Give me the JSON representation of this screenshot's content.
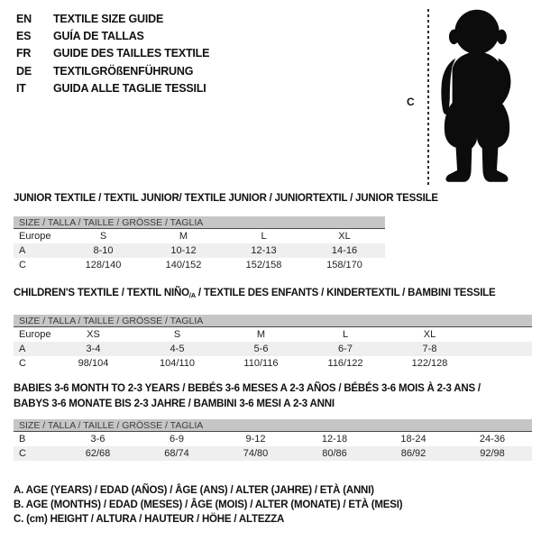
{
  "colors": {
    "size_bar_bg": "#c6c6c6",
    "size_bar_border": "#4a4a4a",
    "alt_row_bg": "#efefef",
    "text": "#111111",
    "silhouette": "#0c0c0c"
  },
  "languages": [
    {
      "code": "EN",
      "label": "TEXTILE SIZE GUIDE"
    },
    {
      "code": "ES",
      "label": "GUÍA DE TALLAS"
    },
    {
      "code": "FR",
      "label": "GUIDE DES TAILLES TEXTILE"
    },
    {
      "code": "DE",
      "label": "TEXTILGRÖßENFÜHRUNG"
    },
    {
      "code": "IT",
      "label": "GUIDA ALLE TAGLIE TESSILI"
    }
  ],
  "figure": {
    "height_label": "C"
  },
  "tables": [
    {
      "title": "JUNIOR TEXTILE / TEXTIL JUNIOR/ TEXTILE JUNIOR / JUNIORTEXTIL / JUNIOR TESSILE",
      "size_header": "SIZE / TALLA / TAILLE / GRÖSSE / TAGLIA",
      "rows": [
        {
          "label": "Europe",
          "values": [
            "S",
            "M",
            "L",
            "XL"
          ]
        },
        {
          "label": "A",
          "values": [
            "8-10",
            "10-12",
            "12-13",
            "14-16"
          ]
        },
        {
          "label": "C",
          "values": [
            "128/140",
            "140/152",
            "152/158",
            "158/170"
          ]
        }
      ]
    },
    {
      "title_pre": "CHILDREN'S TEXTILE / TEXTIL NIÑO",
      "title_sub": "/A",
      "title_post": " / TEXTILE DES ENFANTS / KINDERTEXTIL / BAMBINI TESSILE",
      "size_header": "SIZE / TALLA / TAILLE / GRÖSSE / TAGLIA",
      "rows": [
        {
          "label": "Europe",
          "values": [
            "XS",
            "S",
            "M",
            "L",
            "XL"
          ]
        },
        {
          "label": "A",
          "values": [
            "3-4",
            "4-5",
            "5-6",
            "6-7",
            "7-8"
          ]
        },
        {
          "label": "C",
          "values": [
            "98/104",
            "104/110",
            "110/116",
            "116/122",
            "122/128"
          ]
        }
      ]
    },
    {
      "title_line1": "BABIES 3-6 MONTH TO 2-3 YEARS / BEBÉS 3-6 MESES A 2-3 AÑOS / BÉBÉS 3-6 MOIS À 2-3 ANS /",
      "title_line2": "BABYS 3-6 MONATE BIS 2-3 JAHRE / BAMBINI 3-6 MESI A 2-3 ANNI",
      "size_header": "SIZE / TALLA / TAILLE / GRÖSSE / TAGLIA",
      "rows": [
        {
          "label": "B",
          "values": [
            "3-6",
            "6-9",
            "9-12",
            "12-18",
            "18-24",
            "24-36"
          ]
        },
        {
          "label": "C",
          "values": [
            "62/68",
            "68/74",
            "74/80",
            "80/86",
            "86/92",
            "92/98"
          ]
        }
      ]
    }
  ],
  "footnotes": [
    "A. AGE (YEARS) / EDAD (AÑOS) / ÂGE (ANS) / ALTER (JAHRE) / ETÀ (ANNI)",
    "B. AGE (MONTHS) / EDAD (MESES) / ÂGE (MOIS) / ALTER (MONATE) / ETÀ (MESI)",
    "C. (cm) HEIGHT / ALTURA / HAUTEUR / HÖHE / ALTEZZA"
  ]
}
